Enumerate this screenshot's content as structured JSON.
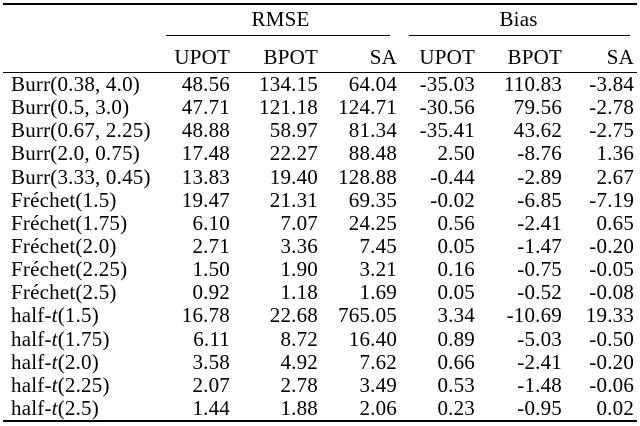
{
  "page": {
    "background": "#ffffff",
    "text_color": "#000000",
    "rule_color": "#000000"
  },
  "table": {
    "groups": [
      {
        "label": "RMSE"
      },
      {
        "label": "Bias"
      }
    ],
    "sub_headers": [
      "UPOT",
      "BPOT",
      "SA",
      "UPOT",
      "BPOT",
      "SA"
    ],
    "rows": [
      {
        "label": [
          {
            "text": "Burr(0.38, 4.0)",
            "italic": false
          }
        ],
        "values": [
          "48.56",
          "134.15",
          "64.04",
          "-35.03",
          "110.83",
          "-3.84"
        ]
      },
      {
        "label": [
          {
            "text": "Burr(0.5, 3.0)",
            "italic": false
          }
        ],
        "values": [
          "47.71",
          "121.18",
          "124.71",
          "-30.56",
          "79.56",
          "-2.78"
        ]
      },
      {
        "label": [
          {
            "text": "Burr(0.67, 2.25)",
            "italic": false
          }
        ],
        "values": [
          "48.88",
          "58.97",
          "81.34",
          "-35.41",
          "43.62",
          "-2.75"
        ]
      },
      {
        "label": [
          {
            "text": "Burr(2.0, 0.75)",
            "italic": false
          }
        ],
        "values": [
          "17.48",
          "22.27",
          "88.48",
          "2.50",
          "-8.76",
          "1.36"
        ]
      },
      {
        "label": [
          {
            "text": "Burr(3.33, 0.45)",
            "italic": false
          }
        ],
        "values": [
          "13.83",
          "19.40",
          "128.88",
          "-0.44",
          "-2.89",
          "2.67"
        ]
      },
      {
        "label": [
          {
            "text": "Fréchet(1.5)",
            "italic": false
          }
        ],
        "values": [
          "19.47",
          "21.31",
          "69.35",
          "-0.02",
          "-6.85",
          "-7.19"
        ]
      },
      {
        "label": [
          {
            "text": "Fréchet(1.75)",
            "italic": false
          }
        ],
        "values": [
          "6.10",
          "7.07",
          "24.25",
          "0.56",
          "-2.41",
          "0.65"
        ]
      },
      {
        "label": [
          {
            "text": "Fréchet(2.0)",
            "italic": false
          }
        ],
        "values": [
          "2.71",
          "3.36",
          "7.45",
          "0.05",
          "-1.47",
          "-0.20"
        ]
      },
      {
        "label": [
          {
            "text": "Fréchet(2.25)",
            "italic": false
          }
        ],
        "values": [
          "1.50",
          "1.90",
          "3.21",
          "0.16",
          "-0.75",
          "-0.05"
        ]
      },
      {
        "label": [
          {
            "text": "Fréchet(2.5)",
            "italic": false
          }
        ],
        "values": [
          "0.92",
          "1.18",
          "1.69",
          "0.05",
          "-0.52",
          "-0.08"
        ]
      },
      {
        "label": [
          {
            "text": "half-",
            "italic": false
          },
          {
            "text": "t",
            "italic": true
          },
          {
            "text": "(1.5)",
            "italic": false
          }
        ],
        "values": [
          "16.78",
          "22.68",
          "765.05",
          "3.34",
          "-10.69",
          "19.33"
        ]
      },
      {
        "label": [
          {
            "text": "half-",
            "italic": false
          },
          {
            "text": "t",
            "italic": true
          },
          {
            "text": "(1.75)",
            "italic": false
          }
        ],
        "values": [
          "6.11",
          "8.72",
          "16.40",
          "0.89",
          "-5.03",
          "-0.50"
        ]
      },
      {
        "label": [
          {
            "text": "half-",
            "italic": false
          },
          {
            "text": "t",
            "italic": true
          },
          {
            "text": "(2.0)",
            "italic": false
          }
        ],
        "values": [
          "3.58",
          "4.92",
          "7.62",
          "0.66",
          "-2.41",
          "-0.20"
        ]
      },
      {
        "label": [
          {
            "text": "half-",
            "italic": false
          },
          {
            "text": "t",
            "italic": true
          },
          {
            "text": "(2.25)",
            "italic": false
          }
        ],
        "values": [
          "2.07",
          "2.78",
          "3.49",
          "0.53",
          "-1.48",
          "-0.06"
        ]
      },
      {
        "label": [
          {
            "text": "half-",
            "italic": false
          },
          {
            "text": "t",
            "italic": true
          },
          {
            "text": "(2.5)",
            "italic": false
          }
        ],
        "values": [
          "1.44",
          "1.88",
          "2.06",
          "0.23",
          "-0.95",
          "0.02"
        ]
      }
    ]
  }
}
